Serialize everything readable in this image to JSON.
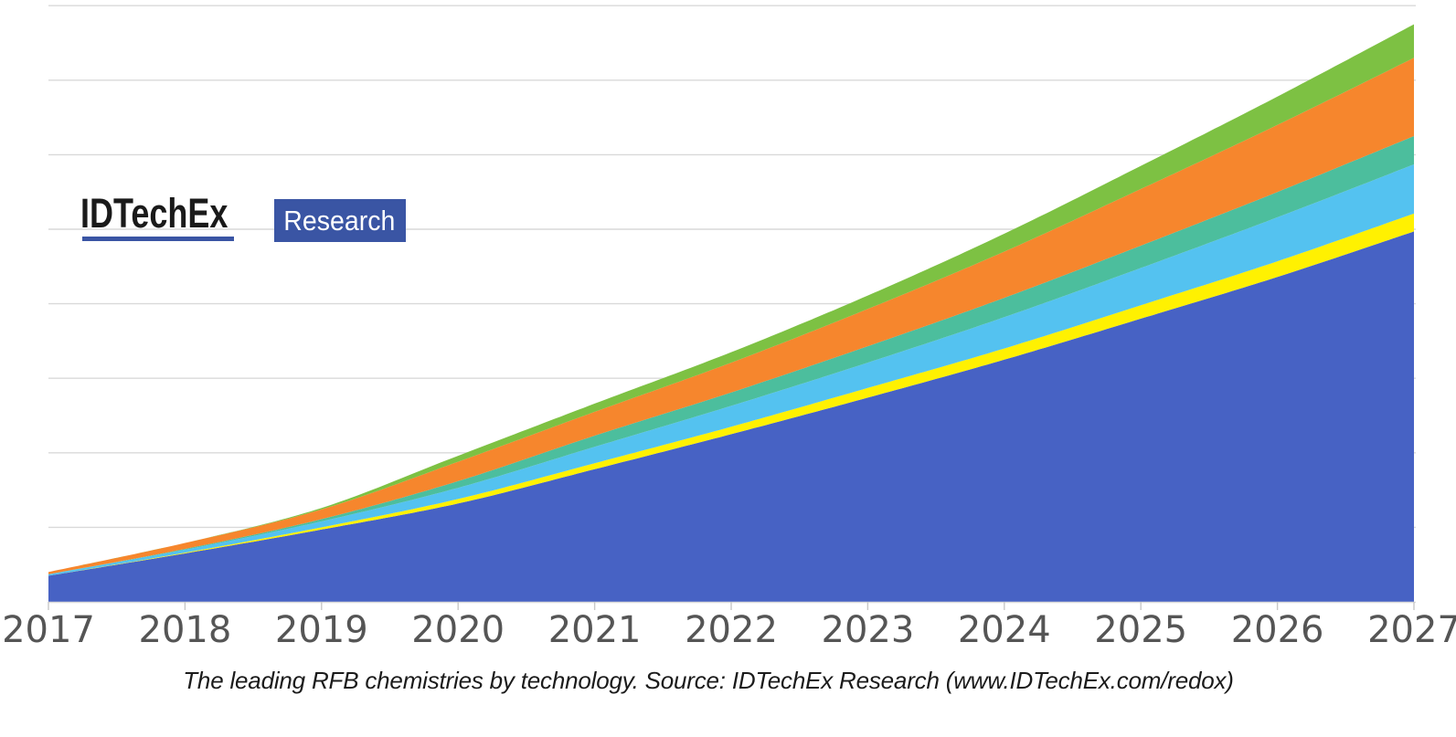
{
  "page": {
    "background": "#FFFFFF"
  },
  "logo": {
    "brand": "IDTechEx",
    "badge": "Research",
    "brand_color": "#1A1A1A",
    "underline_color": "#3A55A4",
    "badge_bg": "#3A55A4",
    "badge_text_color": "#FFFFFF"
  },
  "caption": {
    "text": "The leading RFB chemistries by technology. Source: IDTechEx Research (www.IDTechEx.com/redox)",
    "color": "#1B1B1B"
  },
  "chart_data": {
    "type": "area",
    "stacked": true,
    "smooth": true,
    "title": "",
    "xlabel": "",
    "ylabel": "",
    "legend": "none",
    "grid": "horizontal",
    "grid_color": "#D9D9D9",
    "axis_tick_color": "#C8C8C8",
    "axis_label_color": "#555555",
    "x": [
      2017,
      2018,
      2019,
      2020,
      2021,
      2022,
      2023,
      2024,
      2025,
      2026,
      2027
    ],
    "x_tick_labels": [
      "2017",
      "2018",
      "2019",
      "2020",
      "2021",
      "2022",
      "2023",
      "2024",
      "2025",
      "2026",
      "2027"
    ],
    "y_axis": {
      "tick_labels_visible": false,
      "units_note": "y-axis has no visible labels; values expressed in gridline intervals (1 unit = 1 gridline spacing)",
      "ylim": [
        0,
        8
      ],
      "gridline_values": [
        1,
        2,
        3,
        4,
        5,
        6,
        7,
        8
      ]
    },
    "series": [
      {
        "name": "royal-blue-bottom-layer",
        "color": "#4762C4",
        "values": [
          0.35,
          0.65,
          0.97,
          1.32,
          1.78,
          2.25,
          2.74,
          3.25,
          3.8,
          4.36,
          4.97
        ]
      },
      {
        "name": "yellow-layer",
        "color": "#FFF101",
        "values": [
          0.0,
          0.01,
          0.03,
          0.06,
          0.08,
          0.1,
          0.13,
          0.15,
          0.18,
          0.21,
          0.24
        ]
      },
      {
        "name": "sky-blue-layer",
        "color": "#54C2F0",
        "values": [
          0.02,
          0.04,
          0.08,
          0.15,
          0.22,
          0.28,
          0.34,
          0.42,
          0.5,
          0.59,
          0.66
        ]
      },
      {
        "name": "sea-green-layer",
        "color": "#4CBE9D",
        "values": [
          0.0,
          0.01,
          0.03,
          0.09,
          0.15,
          0.18,
          0.22,
          0.26,
          0.3,
          0.34,
          0.38
        ]
      },
      {
        "name": "orange-layer",
        "color": "#F6862D",
        "values": [
          0.03,
          0.08,
          0.13,
          0.26,
          0.32,
          0.4,
          0.5,
          0.62,
          0.76,
          0.9,
          1.05
        ]
      },
      {
        "name": "light-green-top-layer",
        "color": "#7DC143",
        "values": [
          0.0,
          0.0,
          0.02,
          0.08,
          0.11,
          0.14,
          0.18,
          0.24,
          0.31,
          0.38,
          0.45
        ]
      }
    ]
  }
}
